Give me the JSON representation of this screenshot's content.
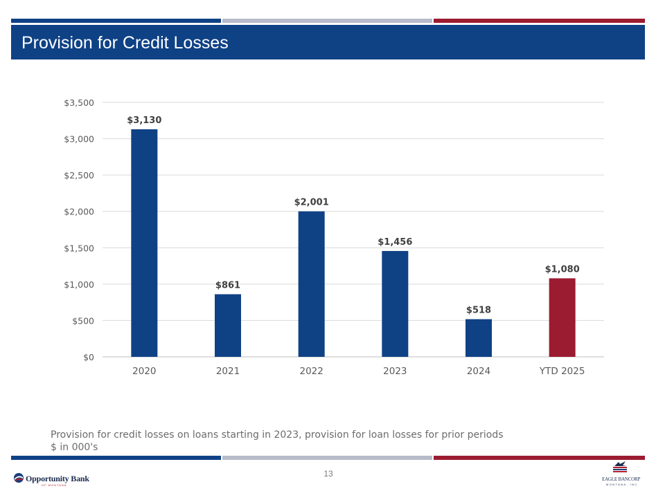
{
  "colors": {
    "navy": "#0f4185",
    "grey": "#b7bac9",
    "red": "#9b1b30",
    "text_grey": "#6b6b6b"
  },
  "header": {
    "title": "Provision for Credit Losses"
  },
  "chart_data": {
    "type": "bar",
    "title": "",
    "categories": [
      "2020",
      "2021",
      "2022",
      "2023",
      "2024",
      "YTD 2025"
    ],
    "values": [
      3130,
      861,
      2001,
      1456,
      518,
      1080
    ],
    "value_labels": [
      "$3,130",
      "$861",
      "$2,001",
      "$1,456",
      "$518",
      "$1,080"
    ],
    "bar_colors": [
      "#0f4185",
      "#0f4185",
      "#0f4185",
      "#0f4185",
      "#0f4185",
      "#9b1b30"
    ],
    "yticks": [
      0,
      500,
      1000,
      1500,
      2000,
      2500,
      3000,
      3500
    ],
    "ytick_labels": [
      "$0",
      "$500",
      "$1,000",
      "$1,500",
      "$2,000",
      "$2,500",
      "$3,000",
      "$3,500"
    ],
    "ylim": [
      0,
      3500
    ],
    "grid": true,
    "xlabel": "",
    "ylabel": ""
  },
  "footnotes": {
    "line1": "Provision for credit losses on loans starting in 2023, provision for loan losses for prior periods",
    "line2": "$ in 000's"
  },
  "footer": {
    "page_number": "13",
    "left_logo_name": "Opportunity Bank",
    "left_logo_sub": "OF MONTANA",
    "right_logo_name": "EAGLE BANCORP",
    "right_logo_sub": "MONTANA, INC."
  }
}
